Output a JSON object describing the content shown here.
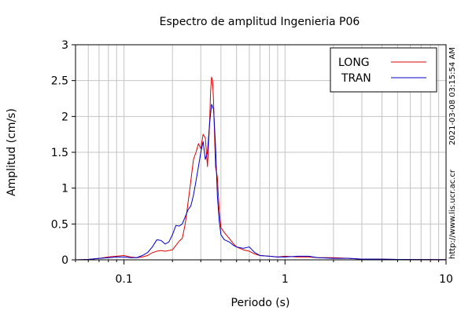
{
  "chart_data": {
    "type": "line",
    "title": "Espectro de amplitud Ingenieria P06",
    "xlabel": "Periodo (s)",
    "ylabel": "Amplitud (cm/s)",
    "xscale": "log",
    "xlim": [
      0.05,
      10
    ],
    "ylim": [
      0,
      3
    ],
    "xticks": [
      {
        "value": 0.1,
        "label": "0.1"
      },
      {
        "value": 1,
        "label": "1"
      },
      {
        "value": 10,
        "label": "10"
      }
    ],
    "yticks": [
      {
        "value": 0,
        "label": "0"
      },
      {
        "value": 0.5,
        "label": "0.5"
      },
      {
        "value": 1,
        "label": "1"
      },
      {
        "value": 1.5,
        "label": "1.5"
      },
      {
        "value": 2,
        "label": "2"
      },
      {
        "value": 2.5,
        "label": "2.5"
      },
      {
        "value": 3,
        "label": "3"
      }
    ],
    "grid": true,
    "legend_position": "top-right",
    "series": [
      {
        "name": "LONG",
        "color": "#dd0000",
        "points": [
          [
            0.05,
            0.0
          ],
          [
            0.06,
            0.005
          ],
          [
            0.07,
            0.02
          ],
          [
            0.08,
            0.04
          ],
          [
            0.09,
            0.05
          ],
          [
            0.1,
            0.06
          ],
          [
            0.11,
            0.04
          ],
          [
            0.12,
            0.03
          ],
          [
            0.13,
            0.04
          ],
          [
            0.14,
            0.06
          ],
          [
            0.15,
            0.1
          ],
          [
            0.16,
            0.12
          ],
          [
            0.17,
            0.13
          ],
          [
            0.18,
            0.12
          ],
          [
            0.19,
            0.13
          ],
          [
            0.2,
            0.14
          ],
          [
            0.21,
            0.2
          ],
          [
            0.22,
            0.26
          ],
          [
            0.23,
            0.3
          ],
          [
            0.24,
            0.5
          ],
          [
            0.25,
            0.8
          ],
          [
            0.26,
            1.1
          ],
          [
            0.27,
            1.4
          ],
          [
            0.28,
            1.5
          ],
          [
            0.29,
            1.62
          ],
          [
            0.3,
            1.55
          ],
          [
            0.31,
            1.75
          ],
          [
            0.32,
            1.7
          ],
          [
            0.33,
            1.3
          ],
          [
            0.34,
            1.9
          ],
          [
            0.345,
            2.35
          ],
          [
            0.35,
            2.55
          ],
          [
            0.355,
            2.5
          ],
          [
            0.36,
            2.2
          ],
          [
            0.37,
            1.3
          ],
          [
            0.38,
            1.15
          ],
          [
            0.39,
            0.7
          ],
          [
            0.4,
            0.45
          ],
          [
            0.42,
            0.38
          ],
          [
            0.45,
            0.3
          ],
          [
            0.48,
            0.22
          ],
          [
            0.5,
            0.18
          ],
          [
            0.55,
            0.14
          ],
          [
            0.6,
            0.12
          ],
          [
            0.65,
            0.08
          ],
          [
            0.7,
            0.06
          ],
          [
            0.8,
            0.05
          ],
          [
            0.9,
            0.04
          ],
          [
            1.0,
            0.05
          ],
          [
            1.2,
            0.04
          ],
          [
            1.4,
            0.04
          ],
          [
            1.6,
            0.03
          ],
          [
            2.0,
            0.03
          ],
          [
            2.5,
            0.02
          ],
          [
            3.0,
            0.01
          ],
          [
            4.0,
            0.01
          ],
          [
            5.0,
            0.005
          ],
          [
            7.0,
            0.004
          ],
          [
            10.0,
            0.003
          ]
        ]
      },
      {
        "name": "TRAN",
        "color": "#0000cc",
        "points": [
          [
            0.05,
            0.0
          ],
          [
            0.06,
            0.005
          ],
          [
            0.07,
            0.02
          ],
          [
            0.08,
            0.03
          ],
          [
            0.09,
            0.04
          ],
          [
            0.1,
            0.04
          ],
          [
            0.11,
            0.03
          ],
          [
            0.12,
            0.03
          ],
          [
            0.13,
            0.06
          ],
          [
            0.14,
            0.1
          ],
          [
            0.15,
            0.18
          ],
          [
            0.16,
            0.28
          ],
          [
            0.17,
            0.27
          ],
          [
            0.18,
            0.22
          ],
          [
            0.19,
            0.25
          ],
          [
            0.2,
            0.35
          ],
          [
            0.21,
            0.48
          ],
          [
            0.22,
            0.47
          ],
          [
            0.23,
            0.5
          ],
          [
            0.24,
            0.6
          ],
          [
            0.25,
            0.7
          ],
          [
            0.26,
            0.75
          ],
          [
            0.27,
            0.9
          ],
          [
            0.28,
            1.1
          ],
          [
            0.29,
            1.3
          ],
          [
            0.3,
            1.5
          ],
          [
            0.31,
            1.65
          ],
          [
            0.32,
            1.4
          ],
          [
            0.33,
            1.5
          ],
          [
            0.34,
            1.9
          ],
          [
            0.35,
            2.17
          ],
          [
            0.36,
            2.1
          ],
          [
            0.37,
            1.6
          ],
          [
            0.38,
            0.9
          ],
          [
            0.39,
            0.55
          ],
          [
            0.4,
            0.35
          ],
          [
            0.42,
            0.28
          ],
          [
            0.45,
            0.25
          ],
          [
            0.48,
            0.2
          ],
          [
            0.5,
            0.18
          ],
          [
            0.55,
            0.16
          ],
          [
            0.6,
            0.18
          ],
          [
            0.65,
            0.1
          ],
          [
            0.7,
            0.06
          ],
          [
            0.8,
            0.05
          ],
          [
            0.9,
            0.04
          ],
          [
            1.0,
            0.04
          ],
          [
            1.2,
            0.05
          ],
          [
            1.4,
            0.05
          ],
          [
            1.6,
            0.03
          ],
          [
            2.0,
            0.02
          ],
          [
            2.5,
            0.02
          ],
          [
            3.0,
            0.01
          ],
          [
            4.0,
            0.01
          ],
          [
            5.0,
            0.005
          ],
          [
            7.0,
            0.004
          ],
          [
            10.0,
            0.003
          ]
        ]
      }
    ],
    "side_text": {
      "timestamp": "2021-03-08 03:15:54 AM",
      "url": "http://www.lis.ucr.ac.cr"
    }
  }
}
